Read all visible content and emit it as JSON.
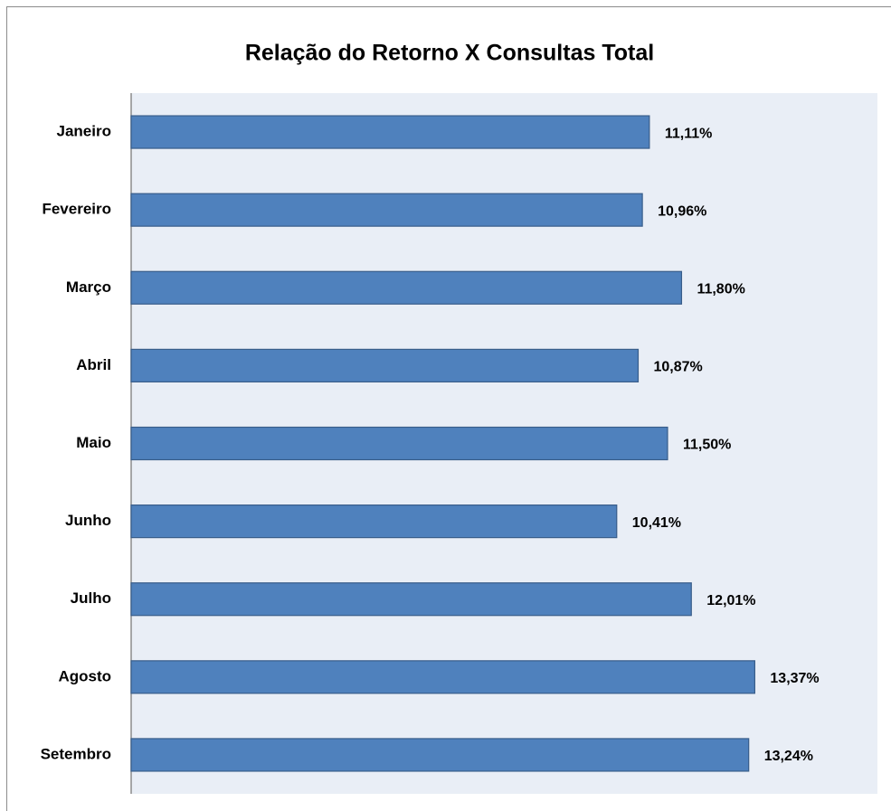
{
  "chart_data": {
    "type": "bar",
    "orientation": "horizontal",
    "title": "Relação do Retorno X Consultas Total",
    "categories": [
      "Janeiro",
      "Fevereiro",
      "Março",
      "Abril",
      "Maio",
      "Junho",
      "Julho",
      "Agosto",
      "Setembro"
    ],
    "values": [
      11.11,
      10.96,
      11.8,
      10.87,
      11.5,
      10.41,
      12.01,
      13.37,
      13.24
    ],
    "value_labels": [
      "11,11%",
      "10,96%",
      "11,80%",
      "10,87%",
      "11,50%",
      "10,41%",
      "12,01%",
      "13,37%",
      "13,24%"
    ],
    "color": "#4f81bd",
    "xlim": [
      0,
      16
    ]
  }
}
